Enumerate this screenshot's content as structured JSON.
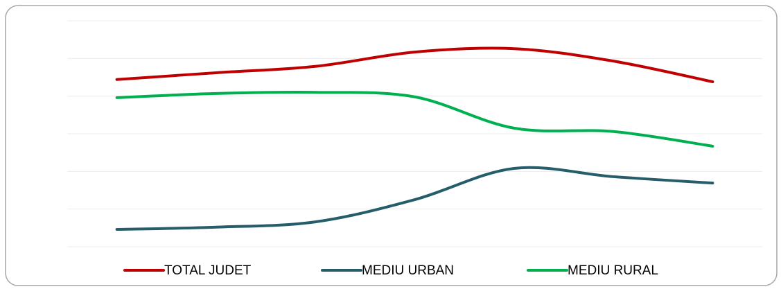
{
  "chart_data": {
    "type": "line",
    "categories": [
      null,
      null,
      null,
      null,
      null,
      null,
      null
    ],
    "series": [
      {
        "name": "TOTAL JUDET",
        "color": "#c00000",
        "values": [
          4.44,
          4.62,
          4.79,
          5.17,
          5.26,
          4.93,
          4.38
        ]
      },
      {
        "name": "MEDIU URBAN",
        "color": "#265d6b",
        "values": [
          0.46,
          0.52,
          0.66,
          1.25,
          2.08,
          1.86,
          1.69
        ]
      },
      {
        "name": "MEDIU RURAL",
        "color": "#00b050",
        "values": [
          3.96,
          4.07,
          4.1,
          3.98,
          3.15,
          3.06,
          2.67
        ]
      }
    ],
    "ylim": [
      0,
      6
    ],
    "yticks": [
      0,
      1,
      2,
      3,
      4,
      5,
      6
    ],
    "grid": true,
    "smooth": true,
    "legend": "bottom"
  }
}
